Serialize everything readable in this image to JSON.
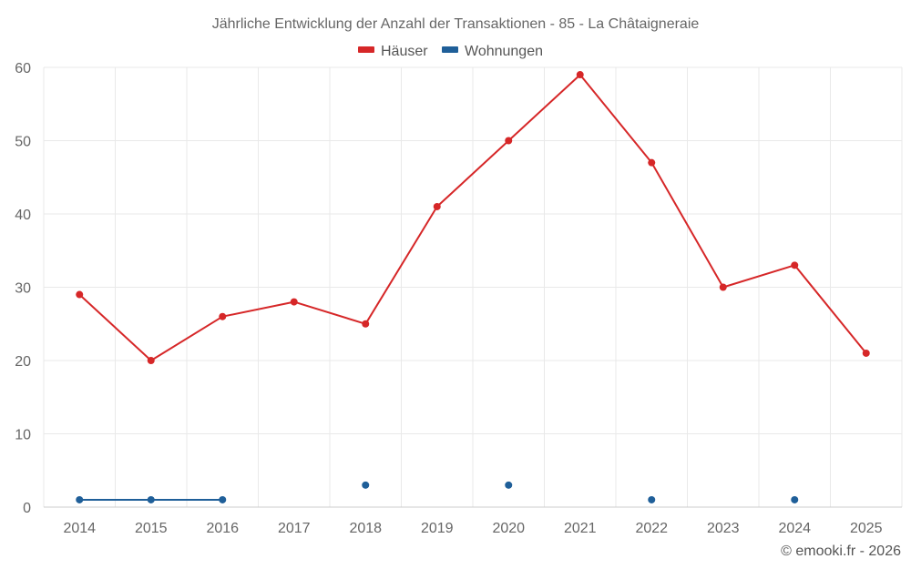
{
  "chart_data": {
    "type": "line",
    "title": "Jährliche Entwicklung der Anzahl der Transaktionen - 85 - La Châtaigneraie",
    "x": [
      "2014",
      "2015",
      "2016",
      "2017",
      "2018",
      "2019",
      "2020",
      "2021",
      "2022",
      "2023",
      "2024",
      "2025"
    ],
    "series": [
      {
        "name": "Häuser",
        "color": "#d62728",
        "values": [
          29,
          20,
          26,
          28,
          25,
          41,
          50,
          59,
          47,
          30,
          33,
          21
        ]
      },
      {
        "name": "Wohnungen",
        "color": "#1f5f99",
        "values": [
          1,
          1,
          1,
          null,
          3,
          null,
          3,
          null,
          1,
          null,
          1,
          null
        ]
      }
    ],
    "ylim": [
      0,
      60
    ],
    "yticks": [
      0,
      10,
      20,
      30,
      40,
      50,
      60
    ],
    "xlabel": "",
    "ylabel": "",
    "grid": true,
    "legend_position": "top-center"
  },
  "credit": "© emooki.fr - 2026"
}
